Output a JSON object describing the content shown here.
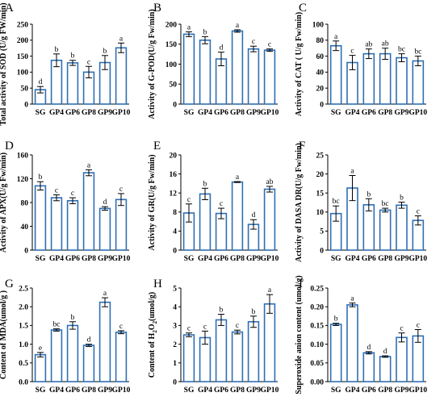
{
  "chart_data": [
    {
      "panel": "A",
      "type": "bar",
      "categories": [
        "SG",
        "GP4",
        "GP6",
        "GP8",
        "GP9",
        "GP10"
      ],
      "values": [
        45,
        137,
        129,
        100,
        130,
        176
      ],
      "errors": [
        10,
        20,
        8,
        18,
        22,
        15
      ],
      "letters": [
        "d",
        "b",
        "b",
        "c",
        "b",
        "a"
      ],
      "ylabel": "Total activity of SOD (U/g FW/min)",
      "ylim": [
        0,
        250
      ],
      "yticks": [
        0,
        50,
        100,
        150,
        200,
        250
      ],
      "ytick_labels": [
        "0",
        "50",
        "100",
        "150",
        "200",
        "250"
      ]
    },
    {
      "panel": "B",
      "type": "bar",
      "categories": [
        "SG",
        "GP4",
        "GP6",
        "GP8",
        "GP9",
        "GP10"
      ],
      "values": [
        175,
        160,
        113,
        183,
        138,
        135
      ],
      "errors": [
        6,
        9,
        17,
        3,
        7,
        3
      ],
      "letters": [
        "a",
        "b",
        "d",
        "a",
        "c",
        "c"
      ],
      "ylabel": "Activity of G-POD(U/g Fw/min)",
      "ylim": [
        0,
        200
      ],
      "yticks": [
        0,
        50,
        100,
        150,
        200
      ],
      "ytick_labels": [
        "0",
        "50",
        "100",
        "150",
        "200"
      ]
    },
    {
      "panel": "C",
      "type": "bar",
      "categories": [
        "SG",
        "GP4",
        "GP6",
        "GP8",
        "GP9",
        "GP10"
      ],
      "values": [
        73,
        52,
        63,
        63,
        58,
        54
      ],
      "errors": [
        6,
        9,
        6,
        7,
        5,
        6
      ],
      "letters": [
        "a",
        "c",
        "ab",
        "ab",
        "bc",
        "bc"
      ],
      "ylabel": "Activity of CAT ( U/g Fw/min)",
      "ylim": [
        0,
        100
      ],
      "yticks": [
        0,
        20,
        40,
        60,
        80,
        100
      ],
      "ytick_labels": [
        "0",
        "20",
        "40",
        "60",
        "80",
        "100"
      ]
    },
    {
      "panel": "D",
      "type": "bar",
      "categories": [
        "SG",
        "GP4",
        "GP6",
        "GP8",
        "GP9",
        "GP10"
      ],
      "values": [
        108,
        88,
        83,
        130,
        70,
        85
      ],
      "errors": [
        7,
        5,
        5,
        5,
        3,
        10
      ],
      "letters": [
        "b",
        "c",
        "c",
        "a",
        "d",
        "c"
      ],
      "ylabel": "Activity of APX(U/g Fw/min)",
      "ylim": [
        0,
        160
      ],
      "yticks": [
        0,
        40,
        80,
        120,
        160
      ],
      "ytick_labels": [
        "0",
        "40",
        "80",
        "120",
        "160"
      ]
    },
    {
      "panel": "E",
      "type": "bar",
      "categories": [
        "SG",
        "GP4",
        "GP6",
        "GP8",
        "GP9",
        "GP10"
      ],
      "values": [
        7.8,
        11.8,
        7.7,
        14.3,
        5.4,
        12.8
      ],
      "errors": [
        1.9,
        1.2,
        1.1,
        0.1,
        1.0,
        0.6
      ],
      "letters": [
        "c",
        "b",
        "c",
        "a",
        "d",
        "ab"
      ],
      "ylabel": "Activity of GR(U/g Fw/min)",
      "ylim": [
        0,
        20
      ],
      "yticks": [
        0,
        4,
        8,
        12,
        16,
        20
      ],
      "ytick_labels": [
        "0",
        "4",
        "8",
        "12",
        "16",
        "20"
      ]
    },
    {
      "panel": "F",
      "type": "bar",
      "categories": [
        "SG",
        "GP4",
        "GP6",
        "GP8",
        "GP9",
        "GP10"
      ],
      "values": [
        9.6,
        16.3,
        11.9,
        10.5,
        11.8,
        7.8
      ],
      "errors": [
        2.0,
        3.3,
        1.6,
        0.5,
        0.8,
        1.2
      ],
      "letters": [
        "bc",
        "a",
        "b",
        "bc",
        "b",
        "c"
      ],
      "ylabel": "Activity of DASA DR(U/g Fw/min)",
      "ylim": [
        0,
        25
      ],
      "yticks": [
        0,
        5,
        10,
        15,
        20,
        25
      ],
      "ytick_labels": [
        "0",
        "5",
        "10",
        "15",
        "20",
        "25"
      ]
    },
    {
      "panel": "G",
      "type": "bar",
      "categories": [
        "SG",
        "GP4",
        "GP6",
        "GP8",
        "GP9",
        "GP10"
      ],
      "values": [
        0.72,
        1.38,
        1.5,
        0.97,
        2.12,
        1.32
      ],
      "errors": [
        0.06,
        0.03,
        0.1,
        0.03,
        0.12,
        0.04
      ],
      "letters": [
        "e",
        "bc",
        "b",
        "d",
        "a",
        "c"
      ],
      "ylabel": "Content of MDA(umol/g )",
      "ylim": [
        0,
        2.5
      ],
      "yticks": [
        0,
        0.5,
        1.0,
        1.5,
        2.0,
        2.5
      ],
      "ytick_labels": [
        "0.0",
        "0.5",
        "1.0",
        "1.5",
        "2.0",
        "2.5"
      ]
    },
    {
      "panel": "H",
      "type": "bar",
      "categories": [
        "SG",
        "GP4",
        "GP6",
        "GP8",
        "GP9",
        "GP10"
      ],
      "values": [
        2.5,
        2.35,
        3.3,
        2.65,
        3.2,
        4.15
      ],
      "errors": [
        0.1,
        0.35,
        0.3,
        0.1,
        0.3,
        0.5
      ],
      "letters": [
        "c",
        "c",
        "b",
        "c",
        "b",
        "a"
      ],
      "ylabel": "Content of H",
      "ylabel_sub": "2",
      "ylabel_mid": "O",
      "ylabel_sub2": "2",
      "ylabel_tail": "(umol/g)",
      "ylim": [
        0,
        5
      ],
      "yticks": [
        0,
        1,
        2,
        3,
        4,
        5
      ],
      "ytick_labels": [
        "0",
        "1",
        "2",
        "3",
        "4",
        "5"
      ]
    },
    {
      "panel": "I",
      "type": "bar",
      "categories": [
        "SG",
        "GP4",
        "GP6",
        "GP8",
        "GP9",
        "GP10"
      ],
      "values": [
        0.153,
        0.205,
        0.077,
        0.067,
        0.118,
        0.122
      ],
      "errors": [
        0.003,
        0.005,
        0.003,
        0.002,
        0.012,
        0.017
      ],
      "letters": [
        "b",
        "a",
        "d",
        "d",
        "c",
        "c"
      ],
      "ylabel": "Superoxide anion content (umol/g)",
      "ylim": [
        0,
        0.25
      ],
      "yticks": [
        0,
        0.05,
        0.1,
        0.15,
        0.2,
        0.25
      ],
      "ytick_labels": [
        "0.00",
        "0.05",
        "0.10",
        "0.15",
        "0.20",
        "0.25"
      ]
    }
  ]
}
